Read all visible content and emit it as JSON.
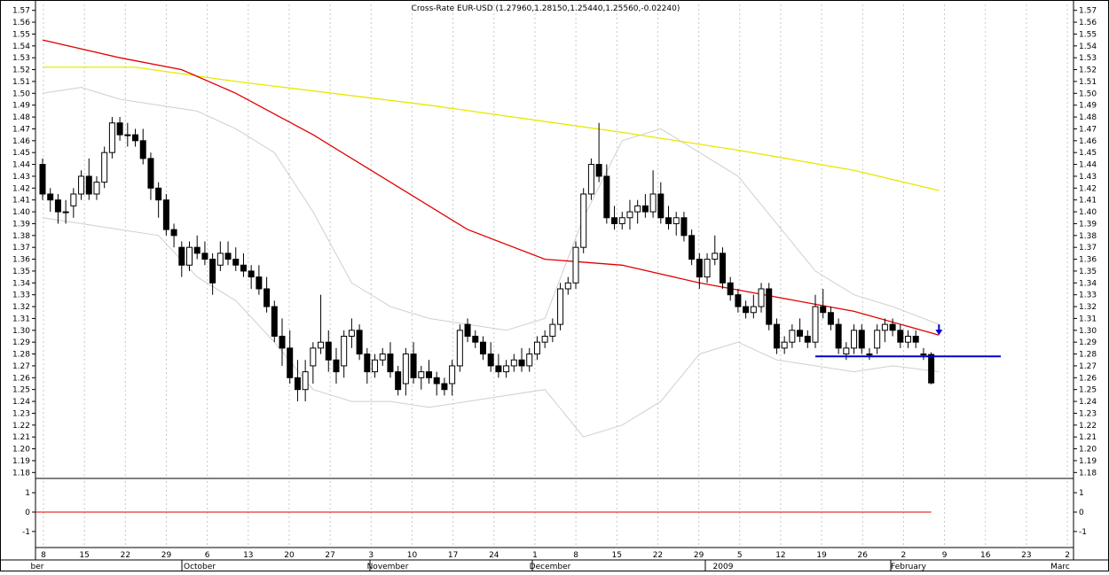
{
  "chart_data": {
    "type": "candlestick",
    "title": "Cross-Rate  EUR-USD (1.27960,1.28150,1.25440,1.25560,-0.02240)",
    "ylim": [
      1.175,
      1.575
    ],
    "y_ticks": [
      1.18,
      1.19,
      1.2,
      1.21,
      1.22,
      1.23,
      1.24,
      1.25,
      1.26,
      1.27,
      1.28,
      1.29,
      1.3,
      1.31,
      1.32,
      1.33,
      1.34,
      1.35,
      1.36,
      1.37,
      1.38,
      1.39,
      1.4,
      1.41,
      1.42,
      1.43,
      1.44,
      1.45,
      1.46,
      1.47,
      1.48,
      1.49,
      1.5,
      1.51,
      1.52,
      1.53,
      1.54,
      1.55,
      1.56,
      1.57
    ],
    "x_day_labels": [
      "8",
      "15",
      "22",
      "29",
      "6",
      "13",
      "20",
      "27",
      "3",
      "10",
      "17",
      "24",
      "1",
      "8",
      "15",
      "22",
      "29",
      "5",
      "12",
      "19",
      "26",
      "2",
      "9",
      "16",
      "23",
      "2"
    ],
    "x_month_labels": [
      "ber",
      "October",
      "November",
      "December",
      "2009",
      "February",
      "Marc"
    ],
    "candles": [
      [
        1.44,
        1.445,
        1.41,
        1.415
      ],
      [
        1.415,
        1.42,
        1.4,
        1.41
      ],
      [
        1.41,
        1.415,
        1.39,
        1.4
      ],
      [
        1.4,
        1.41,
        1.39,
        1.4
      ],
      [
        1.405,
        1.42,
        1.395,
        1.415
      ],
      [
        1.415,
        1.435,
        1.41,
        1.43
      ],
      [
        1.43,
        1.445,
        1.41,
        1.415
      ],
      [
        1.415,
        1.43,
        1.41,
        1.425
      ],
      [
        1.425,
        1.455,
        1.42,
        1.45
      ],
      [
        1.45,
        1.48,
        1.445,
        1.475
      ],
      [
        1.475,
        1.48,
        1.46,
        1.465
      ],
      [
        1.465,
        1.475,
        1.455,
        1.465
      ],
      [
        1.465,
        1.47,
        1.455,
        1.46
      ],
      [
        1.46,
        1.47,
        1.44,
        1.445
      ],
      [
        1.445,
        1.45,
        1.41,
        1.42
      ],
      [
        1.42,
        1.425,
        1.395,
        1.41
      ],
      [
        1.41,
        1.415,
        1.38,
        1.385
      ],
      [
        1.385,
        1.39,
        1.37,
        1.38
      ],
      [
        1.37,
        1.375,
        1.345,
        1.355
      ],
      [
        1.355,
        1.375,
        1.35,
        1.37
      ],
      [
        1.37,
        1.38,
        1.36,
        1.365
      ],
      [
        1.365,
        1.375,
        1.355,
        1.36
      ],
      [
        1.36,
        1.365,
        1.33,
        1.34
      ],
      [
        1.355,
        1.375,
        1.35,
        1.365
      ],
      [
        1.365,
        1.375,
        1.355,
        1.36
      ],
      [
        1.36,
        1.37,
        1.35,
        1.355
      ],
      [
        1.355,
        1.365,
        1.345,
        1.35
      ],
      [
        1.35,
        1.355,
        1.335,
        1.345
      ],
      [
        1.345,
        1.355,
        1.33,
        1.335
      ],
      [
        1.335,
        1.345,
        1.315,
        1.32
      ],
      [
        1.32,
        1.325,
        1.29,
        1.295
      ],
      [
        1.295,
        1.31,
        1.27,
        1.285
      ],
      [
        1.285,
        1.3,
        1.255,
        1.26
      ],
      [
        1.26,
        1.275,
        1.24,
        1.25
      ],
      [
        1.25,
        1.275,
        1.24,
        1.265
      ],
      [
        1.27,
        1.29,
        1.255,
        1.285
      ],
      [
        1.285,
        1.33,
        1.28,
        1.29
      ],
      [
        1.29,
        1.3,
        1.265,
        1.275
      ],
      [
        1.275,
        1.285,
        1.255,
        1.265
      ],
      [
        1.27,
        1.3,
        1.26,
        1.295
      ],
      [
        1.295,
        1.31,
        1.285,
        1.3
      ],
      [
        1.3,
        1.305,
        1.275,
        1.28
      ],
      [
        1.28,
        1.285,
        1.255,
        1.265
      ],
      [
        1.265,
        1.28,
        1.26,
        1.275
      ],
      [
        1.275,
        1.285,
        1.27,
        1.28
      ],
      [
        1.28,
        1.29,
        1.26,
        1.265
      ],
      [
        1.265,
        1.27,
        1.245,
        1.25
      ],
      [
        1.255,
        1.285,
        1.245,
        1.28
      ],
      [
        1.28,
        1.29,
        1.255,
        1.26
      ],
      [
        1.26,
        1.27,
        1.25,
        1.265
      ],
      [
        1.265,
        1.275,
        1.255,
        1.26
      ],
      [
        1.26,
        1.265,
        1.245,
        1.255
      ],
      [
        1.255,
        1.26,
        1.245,
        1.25
      ],
      [
        1.255,
        1.275,
        1.245,
        1.27
      ],
      [
        1.27,
        1.305,
        1.265,
        1.3
      ],
      [
        1.305,
        1.31,
        1.29,
        1.295
      ],
      [
        1.295,
        1.3,
        1.285,
        1.29
      ],
      [
        1.29,
        1.295,
        1.275,
        1.28
      ],
      [
        1.28,
        1.29,
        1.265,
        1.27
      ],
      [
        1.27,
        1.28,
        1.26,
        1.265
      ],
      [
        1.265,
        1.275,
        1.26,
        1.27
      ],
      [
        1.27,
        1.28,
        1.265,
        1.275
      ],
      [
        1.275,
        1.285,
        1.265,
        1.27
      ],
      [
        1.27,
        1.285,
        1.265,
        1.28
      ],
      [
        1.28,
        1.295,
        1.275,
        1.29
      ],
      [
        1.29,
        1.3,
        1.285,
        1.295
      ],
      [
        1.295,
        1.31,
        1.29,
        1.305
      ],
      [
        1.305,
        1.34,
        1.3,
        1.335
      ],
      [
        1.335,
        1.345,
        1.33,
        1.34
      ],
      [
        1.34,
        1.375,
        1.335,
        1.37
      ],
      [
        1.37,
        1.42,
        1.365,
        1.415
      ],
      [
        1.415,
        1.445,
        1.41,
        1.44
      ],
      [
        1.44,
        1.475,
        1.425,
        1.43
      ],
      [
        1.43,
        1.44,
        1.39,
        1.395
      ],
      [
        1.395,
        1.405,
        1.385,
        1.39
      ],
      [
        1.39,
        1.4,
        1.385,
        1.395
      ],
      [
        1.395,
        1.41,
        1.385,
        1.4
      ],
      [
        1.4,
        1.41,
        1.39,
        1.405
      ],
      [
        1.405,
        1.415,
        1.395,
        1.4
      ],
      [
        1.4,
        1.435,
        1.395,
        1.415
      ],
      [
        1.415,
        1.425,
        1.39,
        1.395
      ],
      [
        1.395,
        1.405,
        1.385,
        1.39
      ],
      [
        1.39,
        1.4,
        1.38,
        1.395
      ],
      [
        1.395,
        1.4,
        1.375,
        1.38
      ],
      [
        1.38,
        1.385,
        1.355,
        1.36
      ],
      [
        1.36,
        1.365,
        1.335,
        1.345
      ],
      [
        1.345,
        1.365,
        1.34,
        1.36
      ],
      [
        1.36,
        1.38,
        1.355,
        1.365
      ],
      [
        1.365,
        1.37,
        1.335,
        1.34
      ],
      [
        1.34,
        1.345,
        1.325,
        1.33
      ],
      [
        1.33,
        1.335,
        1.315,
        1.32
      ],
      [
        1.32,
        1.325,
        1.31,
        1.315
      ],
      [
        1.315,
        1.33,
        1.31,
        1.32
      ],
      [
        1.32,
        1.34,
        1.315,
        1.335
      ],
      [
        1.335,
        1.34,
        1.3,
        1.305
      ],
      [
        1.305,
        1.31,
        1.28,
        1.285
      ],
      [
        1.285,
        1.295,
        1.28,
        1.29
      ],
      [
        1.29,
        1.305,
        1.285,
        1.3
      ],
      [
        1.3,
        1.31,
        1.29,
        1.295
      ],
      [
        1.295,
        1.3,
        1.285,
        1.29
      ],
      [
        1.29,
        1.33,
        1.285,
        1.32
      ],
      [
        1.32,
        1.335,
        1.31,
        1.315
      ],
      [
        1.315,
        1.32,
        1.3,
        1.305
      ],
      [
        1.305,
        1.31,
        1.28,
        1.285
      ],
      [
        1.28,
        1.29,
        1.275,
        1.285
      ],
      [
        1.285,
        1.305,
        1.28,
        1.3
      ],
      [
        1.3,
        1.305,
        1.28,
        1.285
      ],
      [
        1.28,
        1.285,
        1.275,
        1.28
      ],
      [
        1.285,
        1.305,
        1.28,
        1.3
      ],
      [
        1.3,
        1.31,
        1.29,
        1.305
      ],
      [
        1.305,
        1.31,
        1.295,
        1.3
      ],
      [
        1.3,
        1.305,
        1.285,
        1.29
      ],
      [
        1.29,
        1.3,
        1.285,
        1.295
      ],
      [
        1.295,
        1.3,
        1.285,
        1.29
      ],
      [
        1.28,
        1.285,
        1.275,
        1.28
      ],
      [
        1.2796,
        1.2815,
        1.2544,
        1.2556
      ]
    ],
    "ma_yellow": [
      [
        0,
        1.522
      ],
      [
        12,
        1.522
      ],
      [
        25,
        1.51
      ],
      [
        50,
        1.49
      ],
      [
        75,
        1.467
      ],
      [
        90,
        1.452
      ],
      [
        105,
        1.435
      ],
      [
        116,
        1.418
      ]
    ],
    "ma_red": [
      [
        0,
        1.545
      ],
      [
        10,
        1.53
      ],
      [
        18,
        1.52
      ],
      [
        25,
        1.5
      ],
      [
        35,
        1.465
      ],
      [
        45,
        1.425
      ],
      [
        55,
        1.385
      ],
      [
        65,
        1.36
      ],
      [
        75,
        1.355
      ],
      [
        85,
        1.34
      ],
      [
        95,
        1.328
      ],
      [
        105,
        1.316
      ],
      [
        116,
        1.296
      ]
    ],
    "bb_upper": [
      [
        0,
        1.5
      ],
      [
        5,
        1.505
      ],
      [
        10,
        1.495
      ],
      [
        15,
        1.49
      ],
      [
        20,
        1.485
      ],
      [
        25,
        1.47
      ],
      [
        30,
        1.45
      ],
      [
        35,
        1.4
      ],
      [
        40,
        1.34
      ],
      [
        45,
        1.32
      ],
      [
        50,
        1.31
      ],
      [
        55,
        1.305
      ],
      [
        60,
        1.3
      ],
      [
        65,
        1.31
      ],
      [
        70,
        1.395
      ],
      [
        75,
        1.46
      ],
      [
        80,
        1.47
      ],
      [
        85,
        1.45
      ],
      [
        90,
        1.43
      ],
      [
        95,
        1.39
      ],
      [
        100,
        1.35
      ],
      [
        105,
        1.33
      ],
      [
        110,
        1.32
      ],
      [
        116,
        1.305
      ]
    ],
    "bb_lower": [
      [
        0,
        1.395
      ],
      [
        5,
        1.39
      ],
      [
        10,
        1.385
      ],
      [
        15,
        1.38
      ],
      [
        20,
        1.345
      ],
      [
        25,
        1.325
      ],
      [
        30,
        1.29
      ],
      [
        35,
        1.25
      ],
      [
        40,
        1.24
      ],
      [
        45,
        1.24
      ],
      [
        50,
        1.235
      ],
      [
        55,
        1.24
      ],
      [
        60,
        1.245
      ],
      [
        65,
        1.25
      ],
      [
        70,
        1.21
      ],
      [
        75,
        1.22
      ],
      [
        80,
        1.24
      ],
      [
        85,
        1.28
      ],
      [
        90,
        1.29
      ],
      [
        95,
        1.275
      ],
      [
        100,
        1.27
      ],
      [
        105,
        1.265
      ],
      [
        110,
        1.27
      ],
      [
        116,
        1.265
      ]
    ],
    "support_line": {
      "value": 1.278,
      "from": 100,
      "to": 124
    },
    "arrow_at": {
      "index": 116,
      "value": 1.296
    },
    "indicator": {
      "y_ticks": [
        1,
        0,
        -1
      ],
      "ylim": [
        -1.6,
        1.6
      ],
      "zero_line": 0
    }
  }
}
